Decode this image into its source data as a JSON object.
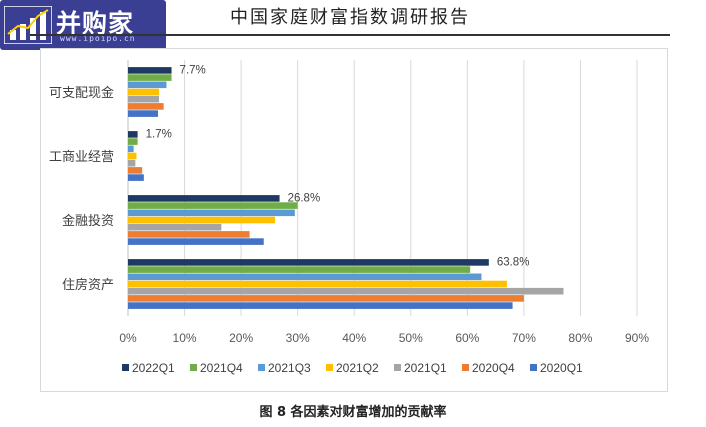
{
  "header": {
    "logo_name": "并购家",
    "logo_url": "www.ipoipo.cn",
    "report_title": "中国家庭财富指数调研报告"
  },
  "caption": "图 8 各因素对财富增加的贡献率",
  "colors": {
    "2022Q1": "#203864",
    "2021Q4": "#70ad47",
    "2021Q3": "#5b9bd5",
    "2021Q2": "#ffc000",
    "2021Q1": "#a5a5a5",
    "2020Q4": "#ed7d31",
    "2020Q1": "#4472c4"
  },
  "chart_data": {
    "type": "bar",
    "orientation": "horizontal",
    "categories": [
      "可支配现金",
      "工商业经营",
      "金融投资",
      "住房资产"
    ],
    "series": [
      {
        "name": "2022Q1",
        "values": [
          7.7,
          1.7,
          26.8,
          63.8
        ]
      },
      {
        "name": "2021Q4",
        "values": [
          7.7,
          1.7,
          30.0,
          60.5
        ]
      },
      {
        "name": "2021Q3",
        "values": [
          6.8,
          1.0,
          29.5,
          62.5
        ]
      },
      {
        "name": "2021Q2",
        "values": [
          5.5,
          1.5,
          26.0,
          67.0
        ]
      },
      {
        "name": "2021Q1",
        "values": [
          5.5,
          1.3,
          16.5,
          77.0
        ]
      },
      {
        "name": "2020Q4",
        "values": [
          6.3,
          2.5,
          21.5,
          70.0
        ]
      },
      {
        "name": "2020Q1",
        "values": [
          5.3,
          2.8,
          24.0,
          68.0
        ]
      }
    ],
    "data_labels": [
      "7.7%",
      "1.7%",
      "26.8%",
      "63.8%"
    ],
    "x_ticks": [
      "0%",
      "10%",
      "20%",
      "30%",
      "40%",
      "50%",
      "60%",
      "70%",
      "80%",
      "90%"
    ],
    "xlim": [
      0,
      90
    ],
    "grid": true,
    "legend_placement": "bottom"
  }
}
